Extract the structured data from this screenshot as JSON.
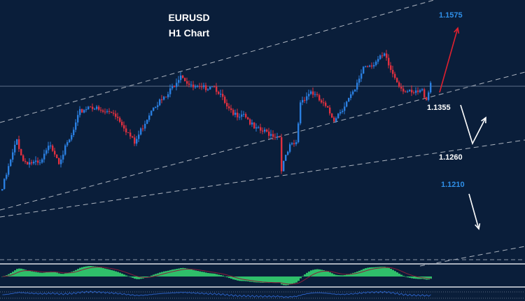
{
  "chart_data": {
    "type": "candlestick",
    "title": "EURUSD",
    "subtitle": "H1 Chart",
    "symbol": "EURUSD",
    "timeframe": "H1",
    "colors": {
      "background": "#0a1e3a",
      "bull": "#2a7fe0",
      "bear": "#e0303f",
      "trendline": "#c8cdd6",
      "histogram": "#2fbf6a",
      "signal": "#8a1f3a",
      "oscillator": "#2a5fc0"
    },
    "close_path": [
      {
        "bar": 0,
        "close": 1.1203
      },
      {
        "bar": 7,
        "close": 1.1292
      },
      {
        "bar": 10,
        "close": 1.1254
      },
      {
        "bar": 18,
        "close": 1.1247
      },
      {
        "bar": 23,
        "close": 1.1285
      },
      {
        "bar": 27,
        "close": 1.1254
      },
      {
        "bar": 33,
        "close": 1.1298
      },
      {
        "bar": 37,
        "close": 1.1342
      },
      {
        "bar": 42,
        "close": 1.1355
      },
      {
        "bar": 47,
        "close": 1.1342
      },
      {
        "bar": 53,
        "close": 1.1342
      },
      {
        "bar": 57,
        "close": 1.1323
      },
      {
        "bar": 63,
        "close": 1.1285
      },
      {
        "bar": 67,
        "close": 1.1317
      },
      {
        "bar": 72,
        "close": 1.1355
      },
      {
        "bar": 78,
        "close": 1.1368
      },
      {
        "bar": 85,
        "close": 1.1412
      },
      {
        "bar": 90,
        "close": 1.1387
      },
      {
        "bar": 95,
        "close": 1.1383
      },
      {
        "bar": 100,
        "close": 1.1393
      },
      {
        "bar": 103,
        "close": 1.138
      },
      {
        "bar": 107,
        "close": 1.1349
      },
      {
        "bar": 110,
        "close": 1.1336
      },
      {
        "bar": 115,
        "close": 1.1342
      },
      {
        "bar": 120,
        "close": 1.1311
      },
      {
        "bar": 127,
        "close": 1.1304
      },
      {
        "bar": 132,
        "close": 1.1298
      },
      {
        "bar": 133,
        "close": 1.1241
      },
      {
        "bar": 137,
        "close": 1.1279
      },
      {
        "bar": 140,
        "close": 1.1285
      },
      {
        "bar": 142,
        "close": 1.1361
      },
      {
        "bar": 147,
        "close": 1.138
      },
      {
        "bar": 153,
        "close": 1.1355
      },
      {
        "bar": 158,
        "close": 1.133
      },
      {
        "bar": 163,
        "close": 1.1355
      },
      {
        "bar": 168,
        "close": 1.138
      },
      {
        "bar": 172,
        "close": 1.1425
      },
      {
        "bar": 177,
        "close": 1.1431
      },
      {
        "bar": 182,
        "close": 1.1444
      },
      {
        "bar": 185,
        "close": 1.1418
      },
      {
        "bar": 190,
        "close": 1.1387
      },
      {
        "bar": 195,
        "close": 1.1374
      },
      {
        "bar": 200,
        "close": 1.138
      },
      {
        "bar": 202,
        "close": 1.1367
      },
      {
        "bar": 204,
        "close": 1.1396
      }
    ],
    "horizontal_line": 1.1389,
    "annotations": [
      {
        "text": "1.1575",
        "color": "#2f8fe8"
      },
      {
        "text": "1.1355",
        "color": "#ffffff"
      },
      {
        "text": "1.1260",
        "color": "#ffffff"
      },
      {
        "text": "1.1210",
        "color": "#2f8fe8"
      }
    ],
    "arrows": [
      {
        "direction": "up",
        "color": "#e0202f",
        "target": "1.1575"
      },
      {
        "direction": "down-then-up",
        "color": "#ffffff",
        "target": "1.1260"
      },
      {
        "direction": "down",
        "color": "#ffffff",
        "target": "1.1210"
      }
    ],
    "indicators": [
      "histogram oscillator with signal line",
      "line oscillator"
    ],
    "grid": false,
    "legend": "none"
  }
}
